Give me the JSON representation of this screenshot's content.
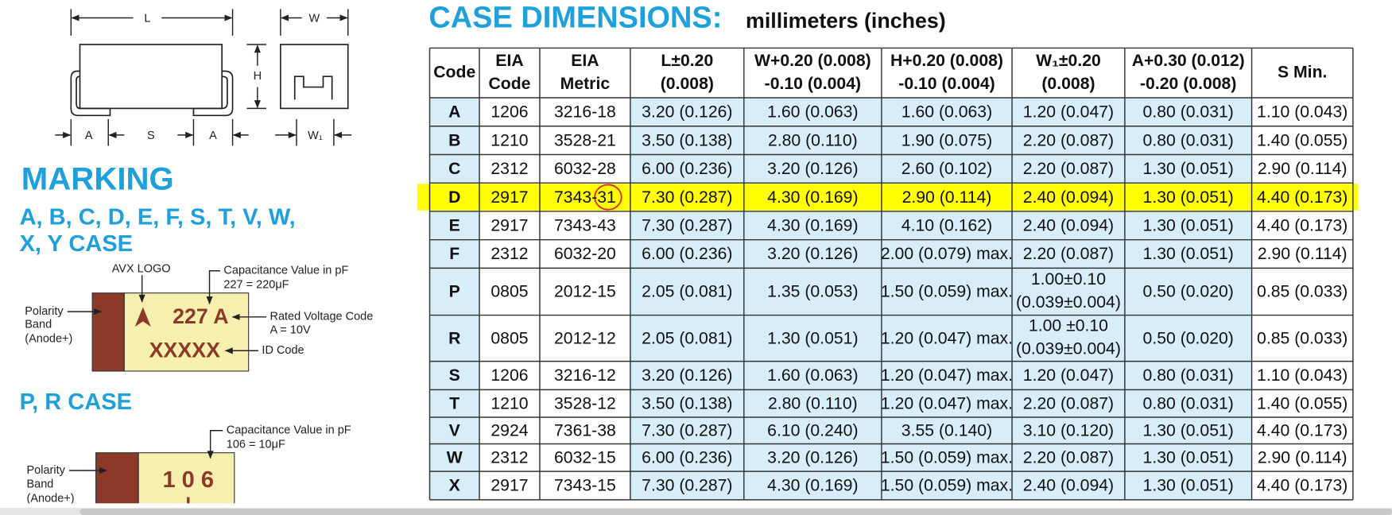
{
  "diagram": {
    "length": "L",
    "width": "W",
    "height": "H",
    "a_left": "A",
    "spacing": "S",
    "a_right": "A",
    "w1": "W₁"
  },
  "marking": {
    "title": "MARKING",
    "subtitle": [
      "A, B, C, D, E, F, S, T, V, W,",
      "X, Y CASE"
    ],
    "logo": "AVX LOGO",
    "capacitance": [
      "Capacitance Value in pF",
      "227 = 220μF"
    ],
    "polarity": [
      "Polarity",
      "Band",
      "(Anode+)"
    ],
    "code_line": "227 A",
    "id_line": "XXXXX",
    "voltage": [
      "Rated Voltage Code",
      "A = 10V"
    ],
    "id_code": "ID Code"
  },
  "pr_case": {
    "title": "P, R CASE",
    "capacitance": [
      "Capacitance Value in pF",
      "106 = 10μF"
    ],
    "polarity": [
      "Polarity",
      "Band",
      "(Anode+)"
    ],
    "code_line": "1 0 6"
  },
  "table": {
    "title": "CASE DIMENSIONS:",
    "units": "millimeters (inches)",
    "header": [
      [
        "Code"
      ],
      [
        "EIA",
        "Code"
      ],
      [
        "EIA",
        "Metric"
      ],
      [
        "L±0.20",
        "(0.008)"
      ],
      [
        "W+0.20 (0.008)",
        "-0.10 (0.004)"
      ],
      [
        "H+0.20 (0.008)",
        "-0.10 (0.004)"
      ],
      [
        "W₁±0.20",
        "(0.008)"
      ],
      [
        "A+0.30 (0.012)",
        "-0.20 (0.008)"
      ],
      [
        "S Min."
      ]
    ],
    "rows": [
      [
        "A",
        "1206",
        "3216-18",
        "3.20 (0.126)",
        "1.60 (0.063)",
        "1.60 (0.063)",
        "1.20 (0.047)",
        "0.80 (0.031)",
        "1.10 (0.043)"
      ],
      [
        "B",
        "1210",
        "3528-21",
        "3.50 (0.138)",
        "2.80 (0.110)",
        "1.90 (0.075)",
        "2.20 (0.087)",
        "0.80 (0.031)",
        "1.40 (0.055)"
      ],
      [
        "C",
        "2312",
        "6032-28",
        "6.00 (0.236)",
        "3.20 (0.126)",
        "2.60 (0.102)",
        "2.20 (0.087)",
        "1.30 (0.051)",
        "2.90 (0.114)"
      ],
      [
        "D",
        "2917",
        "7343-31",
        "7.30 (0.287)",
        "4.30 (0.169)",
        "2.90 (0.114)",
        "2.40 (0.094)",
        "1.30 (0.051)",
        "4.40 (0.173)"
      ],
      [
        "E",
        "2917",
        "7343-43",
        "7.30 (0.287)",
        "4.30 (0.169)",
        "4.10 (0.162)",
        "2.40 (0.094)",
        "1.30 (0.051)",
        "4.40 (0.173)"
      ],
      [
        "F",
        "2312",
        "6032-20",
        "6.00 (0.236)",
        "3.20 (0.126)",
        "2.00 (0.079) max.",
        "2.20 (0.087)",
        "1.30 (0.051)",
        "2.90 (0.114)"
      ],
      [
        "P",
        "0805",
        "2012-15",
        "2.05 (0.081)",
        "1.35 (0.053)",
        "1.50 (0.059) max.",
        [
          "1.00±0.10",
          "(0.039±0.004)"
        ],
        "0.50 (0.020)",
        "0.85 (0.033)"
      ],
      [
        "R",
        "0805",
        "2012-12",
        "2.05 (0.081)",
        "1.30 (0.051)",
        "1.20 (0.047) max.",
        [
          "1.00 ±0.10",
          "(0.039±0.004)"
        ],
        "0.50 (0.020)",
        "0.85 (0.033)"
      ],
      [
        "S",
        "1206",
        "3216-12",
        "3.20 (0.126)",
        "1.60 (0.063)",
        "1.20 (0.047) max.",
        "1.20 (0.047)",
        "0.80 (0.031)",
        "1.10 (0.043)"
      ],
      [
        "T",
        "1210",
        "3528-12",
        "3.50 (0.138)",
        "2.80 (0.110)",
        "1.20 (0.047) max.",
        "2.20 (0.087)",
        "0.80 (0.031)",
        "1.40 (0.055)"
      ],
      [
        "V",
        "2924",
        "7361-38",
        "7.30 (0.287)",
        "6.10 (0.240)",
        "3.55 (0.140)",
        "3.10 (0.120)",
        "1.30 (0.051)",
        "4.40 (0.173)"
      ],
      [
        "W",
        "2312",
        "6032-15",
        "6.00 (0.236)",
        "3.20 (0.126)",
        "1.50 (0.059) max.",
        "2.20 (0.087)",
        "1.30 (0.051)",
        "2.90 (0.114)"
      ],
      [
        "X",
        "2917",
        "7343-15",
        "7.30 (0.287)",
        "4.30 (0.169)",
        "1.50 (0.059) max.",
        "2.40 (0.094)",
        "1.30 (0.051)",
        "4.40 (0.173)"
      ]
    ]
  }
}
